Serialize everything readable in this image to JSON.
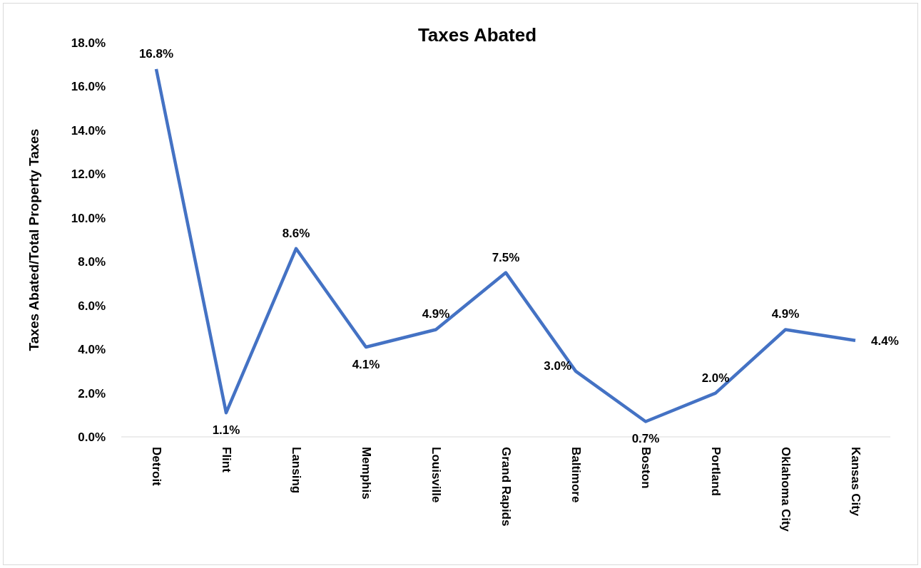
{
  "chart_data": {
    "type": "line",
    "title": "Taxes Abated",
    "ylabel": "Taxes Abated/Total Property Taxes",
    "categories": [
      "Detroit",
      "Flint",
      "Lansing",
      "Memphis",
      "Louisville",
      "Grand Rapids",
      "Baltimore",
      "Boston",
      "Portland",
      "Oklahoma City",
      "Kansas City"
    ],
    "series": [
      {
        "color": "#4472c4",
        "values": [
          16.8,
          1.1,
          8.6,
          4.1,
          4.9,
          7.5,
          3.0,
          0.7,
          2.0,
          4.9,
          4.4
        ],
        "value_labels": [
          "16.8%",
          "1.1%",
          "8.6%",
          "4.1%",
          "4.9%",
          "7.5%",
          "3.0%",
          "0.7%",
          "2.0%",
          "4.9%",
          "4.4%"
        ]
      }
    ],
    "ylim": [
      0,
      18
    ],
    "yticks": [
      {
        "value": 0,
        "label": "0.0%"
      },
      {
        "value": 2,
        "label": "2.0%"
      },
      {
        "value": 4,
        "label": "4.0%"
      },
      {
        "value": 6,
        "label": "6.0%"
      },
      {
        "value": 8,
        "label": "8.0%"
      },
      {
        "value": 10,
        "label": "10.0%"
      },
      {
        "value": 12,
        "label": "12.0%"
      },
      {
        "value": 14,
        "label": "14.0%"
      },
      {
        "value": 16,
        "label": "16.0%"
      },
      {
        "value": 18,
        "label": "18.0%"
      }
    ],
    "grid": false,
    "marker": "none",
    "line_style": "solid"
  }
}
